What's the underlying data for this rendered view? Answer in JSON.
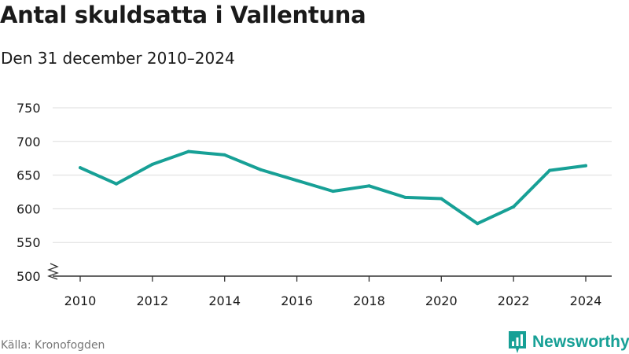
{
  "title": "Antal skuldsatta i Vallentuna",
  "subtitle": "Den 31 december 2010–2024",
  "source": "Källa: Kronofogden",
  "brand": {
    "name": "Newsworthy",
    "icon": "newsworthy-logo-icon"
  },
  "colors": {
    "line": "#17a096",
    "grid": "#dddddd",
    "axis": "#333333",
    "brand": "#17a096",
    "text": "#1a1a1a",
    "muted": "#777777"
  },
  "chart_data": {
    "type": "line",
    "title": "Antal skuldsatta i Vallentuna",
    "subtitle": "Den 31 december 2010–2024",
    "xlabel": "",
    "ylabel": "",
    "x": [
      2010,
      2011,
      2012,
      2013,
      2014,
      2015,
      2016,
      2017,
      2018,
      2019,
      2020,
      2021,
      2022,
      2023,
      2024
    ],
    "series": [
      {
        "name": "Antal skuldsatta",
        "values": [
          661,
          637,
          666,
          685,
          680,
          658,
          642,
          626,
          634,
          617,
          615,
          578,
          603,
          657,
          664
        ]
      }
    ],
    "xticks": [
      2010,
      2012,
      2014,
      2016,
      2018,
      2020,
      2022,
      2024
    ],
    "yticks": [
      500,
      550,
      600,
      650,
      700,
      750
    ],
    "ylim": [
      500,
      750
    ],
    "xlim": [
      2010,
      2024
    ],
    "grid": true,
    "axis_break": true
  }
}
